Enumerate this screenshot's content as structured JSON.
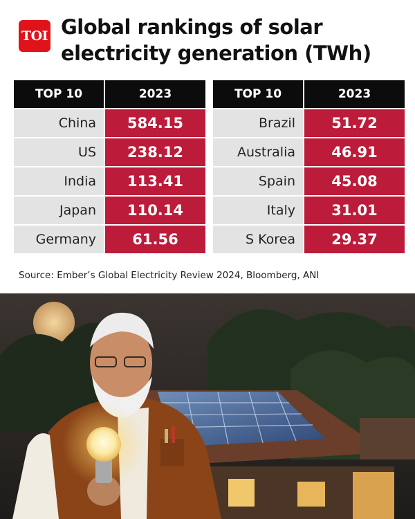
{
  "brand": {
    "logo_text": "TOI",
    "color": "#e0131a"
  },
  "title": "Global rankings of solar electricity generation (TWh)",
  "header": {
    "col1": "TOP 10",
    "col2": "2023"
  },
  "source": "Source: Ember’s Global Electricity Review 2024, Bloomberg, ANI",
  "colors": {
    "header_bg": "#0c0c0c",
    "name_bg": "#e3e3e3",
    "value_bg": "#bc1c3a"
  },
  "chart_data": {
    "type": "table",
    "title": "Global rankings of solar electricity generation (TWh)",
    "columns": [
      "TOP 10",
      "2023"
    ],
    "left": [
      {
        "country": "China",
        "value": "584.15"
      },
      {
        "country": "US",
        "value": "238.12"
      },
      {
        "country": "India",
        "value": "113.41"
      },
      {
        "country": "Japan",
        "value": "110.14"
      },
      {
        "country": "Germany",
        "value": "61.56"
      }
    ],
    "right": [
      {
        "country": "Brazil",
        "value": "51.72"
      },
      {
        "country": "Australia",
        "value": "46.91"
      },
      {
        "country": "Spain",
        "value": "45.08"
      },
      {
        "country": "Italy",
        "value": "31.01"
      },
      {
        "country": "S Korea",
        "value": "29.37"
      }
    ]
  }
}
